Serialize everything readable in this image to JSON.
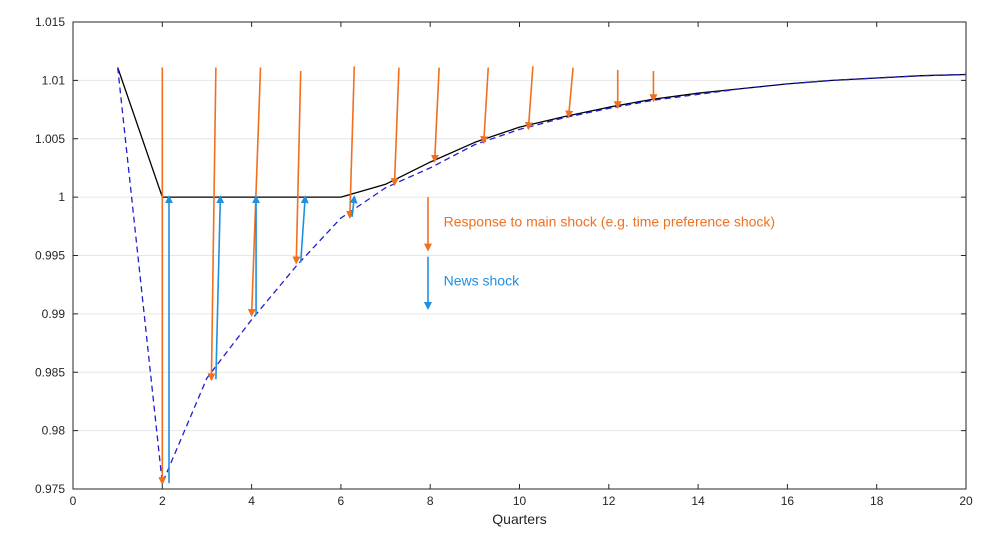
{
  "chart_data": {
    "type": "line",
    "title": "",
    "xlabel": "Quarters",
    "ylabel": "",
    "xlim": [
      0,
      20
    ],
    "ylim": [
      0.975,
      1.015
    ],
    "xticks": [
      0,
      2,
      4,
      6,
      8,
      10,
      12,
      14,
      16,
      18,
      20
    ],
    "xtick_labels": [
      "0",
      "2",
      "4",
      "6",
      "8",
      "10",
      "12",
      "14",
      "16",
      "18",
      "20"
    ],
    "yticks": [
      0.975,
      0.98,
      0.985,
      0.99,
      0.995,
      1,
      1.005,
      1.01,
      1.015
    ],
    "ytick_labels": [
      "0.975",
      "0.98",
      "0.985",
      "0.99",
      "0.995",
      "1",
      "1.005",
      "1.01",
      "1.015"
    ],
    "grid": "horizontal",
    "series": [
      {
        "style": "solid",
        "color": "#000000",
        "x": [
          1,
          2,
          3,
          4,
          5,
          6,
          7,
          8,
          9,
          10,
          11,
          12,
          13,
          14,
          15,
          16,
          17,
          18,
          19,
          20
        ],
        "y": [
          1.0111,
          1.0,
          1.0,
          1.0,
          1.0,
          1.0,
          1.0011,
          1.003,
          1.0047,
          1.006,
          1.0069,
          1.0077,
          1.0084,
          1.0089,
          1.0093,
          1.0097,
          1.01,
          1.0102,
          1.0104,
          1.0105
        ]
      },
      {
        "style": "dashed",
        "color": "#1f1fd1",
        "x": [
          1,
          2,
          3,
          4,
          5,
          6,
          7,
          8,
          9,
          10,
          11,
          12,
          13,
          14,
          15,
          16,
          17,
          18,
          19,
          20
        ],
        "y": [
          1.0111,
          0.9755,
          0.9845,
          0.9895,
          0.9941,
          0.9982,
          1.0008,
          1.0025,
          1.0045,
          1.0058,
          1.0068,
          1.0076,
          1.0083,
          1.0088,
          1.0093,
          1.0097,
          1.01,
          1.0102,
          1.0104,
          1.0105
        ]
      }
    ],
    "main_shock_arrows": {
      "color": "#f07020",
      "items": [
        {
          "x0": 2,
          "x1": 2,
          "y0": 1.0111,
          "y1": 0.9755
        },
        {
          "x0": 3.2,
          "x1": 3.1,
          "y0": 1.0111,
          "y1": 0.9844
        },
        {
          "x0": 4.2,
          "x1": 4.0,
          "y0": 1.0111,
          "y1": 0.9899
        },
        {
          "x0": 5.1,
          "x1": 5.0,
          "y0": 1.0108,
          "y1": 0.9944
        },
        {
          "x0": 6.3,
          "x1": 6.2,
          "y0": 1.0112,
          "y1": 0.9983
        },
        {
          "x0": 7.3,
          "x1": 7.2,
          "y0": 1.0111,
          "y1": 1.0011
        },
        {
          "x0": 8.2,
          "x1": 8.1,
          "y0": 1.0111,
          "y1": 1.0031
        },
        {
          "x0": 9.3,
          "x1": 9.2,
          "y0": 1.0111,
          "y1": 1.0047
        },
        {
          "x0": 10.3,
          "x1": 10.2,
          "y0": 1.0112,
          "y1": 1.0059
        },
        {
          "x0": 11.2,
          "x1": 11.1,
          "y0": 1.0111,
          "y1": 1.0069
        },
        {
          "x0": 12.2,
          "x1": 12.2,
          "y0": 1.0109,
          "y1": 1.0077
        },
        {
          "x0": 13.0,
          "x1": 13.0,
          "y0": 1.0108,
          "y1": 1.0083
        }
      ]
    },
    "news_shock_arrows": {
      "color": "#1e90e0",
      "items": [
        {
          "x0": 2.15,
          "x1": 2.15,
          "y0": 0.9755,
          "y1": 1.0
        },
        {
          "x0": 3.2,
          "x1": 3.3,
          "y0": 0.9844,
          "y1": 1.0
        },
        {
          "x0": 4.1,
          "x1": 4.1,
          "y0": 0.9899,
          "y1": 1.0
        },
        {
          "x0": 5.1,
          "x1": 5.2,
          "y0": 0.9944,
          "y1": 1.0
        },
        {
          "x0": 6.25,
          "x1": 6.3,
          "y0": 0.9983,
          "y1": 1.0
        }
      ]
    },
    "legend": {
      "placement": "center",
      "items": [
        {
          "label": "Response to main shock (e.g. time preference shock)",
          "color": "#f07020",
          "y0": 1.0,
          "y1": 0.9955
        },
        {
          "label": "News shock",
          "color": "#1e90e0",
          "y0": 0.9949,
          "y1": 0.9905
        }
      ],
      "arrow_x": 7.95,
      "text_x": 8.3
    },
    "colors": {
      "grid": "#e6e6e6",
      "axis": "#262626"
    }
  }
}
